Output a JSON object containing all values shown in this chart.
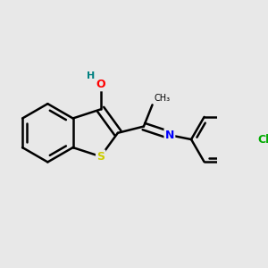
{
  "background_color": "#e8e8e8",
  "bond_color": "#000000",
  "atom_colors": {
    "O": "#ff0000",
    "S": "#cccc00",
    "N": "#0000ff",
    "Cl": "#00aa00",
    "H": "#008080",
    "C": "#000000"
  },
  "figsize": [
    3.0,
    3.0
  ],
  "dpi": 100
}
